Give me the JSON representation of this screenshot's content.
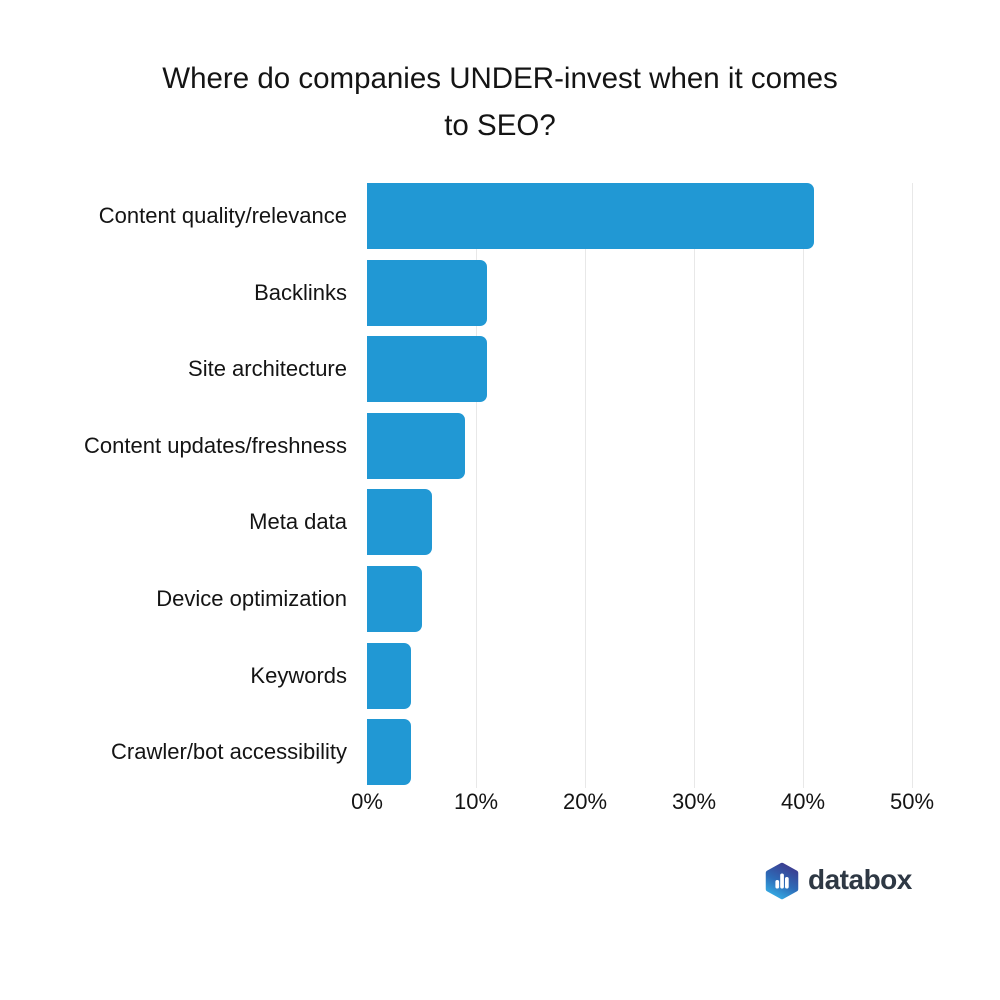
{
  "title": {
    "lines": [
      "Where do companies UNDER-invest when it comes",
      "to SEO?"
    ]
  },
  "chart_data": {
    "type": "bar",
    "orientation": "horizontal",
    "title": "Where do companies UNDER-invest when it comes to SEO?",
    "categories": [
      "Content quality/relevance",
      "Backlinks",
      "Site architecture",
      "Content updates/freshness",
      "Meta data",
      "Device optimization",
      "Keywords",
      "Crawler/bot accessibility"
    ],
    "values": [
      41,
      11,
      11,
      9,
      6,
      5,
      4,
      4
    ],
    "value_unit": "%",
    "xlim": [
      0,
      50
    ],
    "x_ticks": [
      {
        "value": 0,
        "label": "0%"
      },
      {
        "value": 10,
        "label": "10%"
      },
      {
        "value": 20,
        "label": "20%"
      },
      {
        "value": 30,
        "label": "30%"
      },
      {
        "value": 40,
        "label": "40%"
      },
      {
        "value": 50,
        "label": "50%"
      }
    ],
    "grid": true,
    "legend": false,
    "ylabel": "",
    "xlabel": "",
    "bar_color": "#2198d4",
    "gridline_color": "#e8e8e8",
    "text_color": "#141414"
  },
  "footer": {
    "logo": {
      "icon": "databox-hexagon-bar-chart",
      "text": "databox",
      "wordmark_color": "#2e3844",
      "hex_gradient": [
        "#3d3d90",
        "#2d6cb8",
        "#35aae3"
      ]
    }
  }
}
